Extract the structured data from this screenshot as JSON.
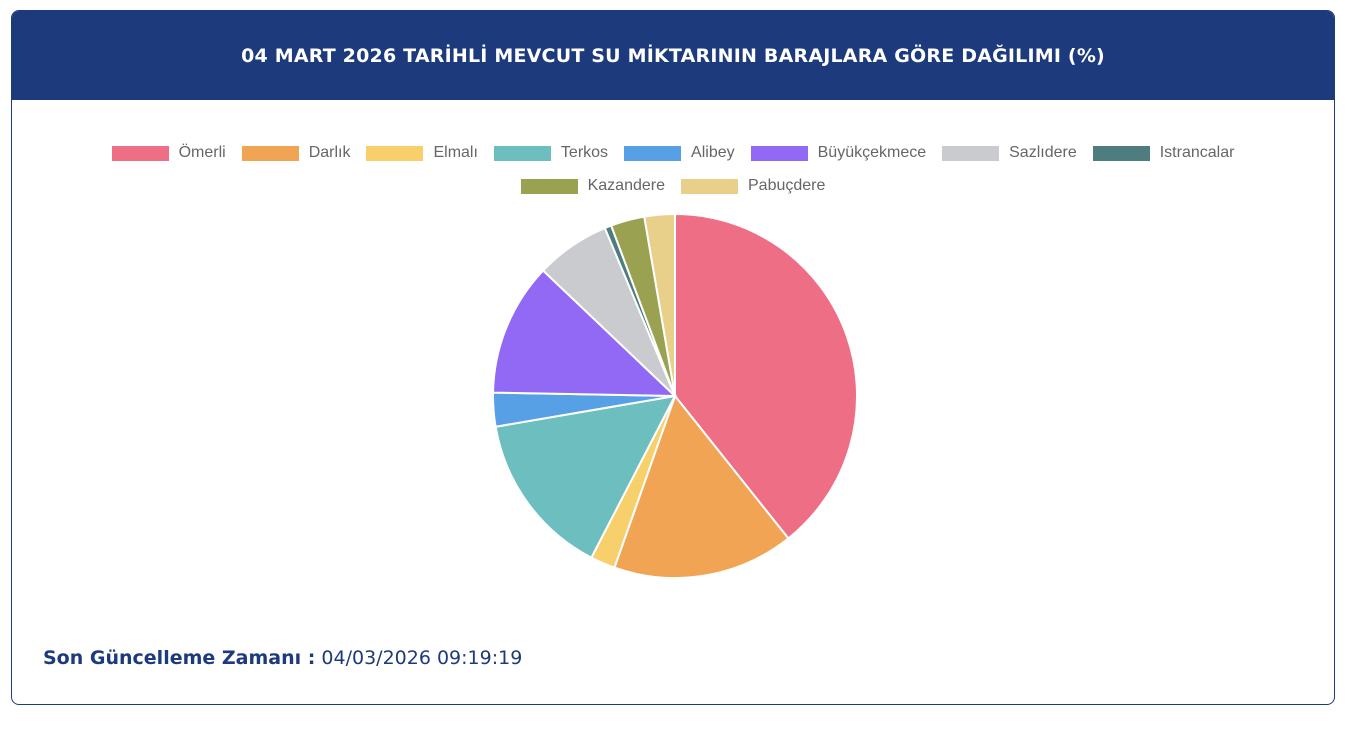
{
  "header": {
    "title": "04 MART 2026 TARİHLİ MEVCUT SU MİKTARININ BARAJLARA GÖRE DAĞILIMI (%)"
  },
  "footer": {
    "label": "Son Güncelleme Zamanı :",
    "value": "04/03/2026 09:19:19"
  },
  "chart_data": {
    "type": "pie",
    "title": "04 MART 2026 TARİHLİ MEVCUT SU MİKTARININ BARAJLARA GÖRE DAĞILIMI (%)",
    "legend_position": "top",
    "categories": [
      "Ömerli",
      "Darlık",
      "Elmalı",
      "Terkos",
      "Alibey",
      "Büyükçekmece",
      "Sazlıdere",
      "Istrancalar",
      "Kazandere",
      "Pabuçdere"
    ],
    "values": [
      39.3,
      16.1,
      2.2,
      14.7,
      3.0,
      11.8,
      6.6,
      0.6,
      3.0,
      2.7
    ],
    "colors": [
      "#ed6e85",
      "#f1a454",
      "#f7cf6b",
      "#6cbebf",
      "#57a0e5",
      "#9269f5",
      "#c9cbcf",
      "#4e7d80",
      "#9aa150",
      "#e8cf8a"
    ]
  }
}
